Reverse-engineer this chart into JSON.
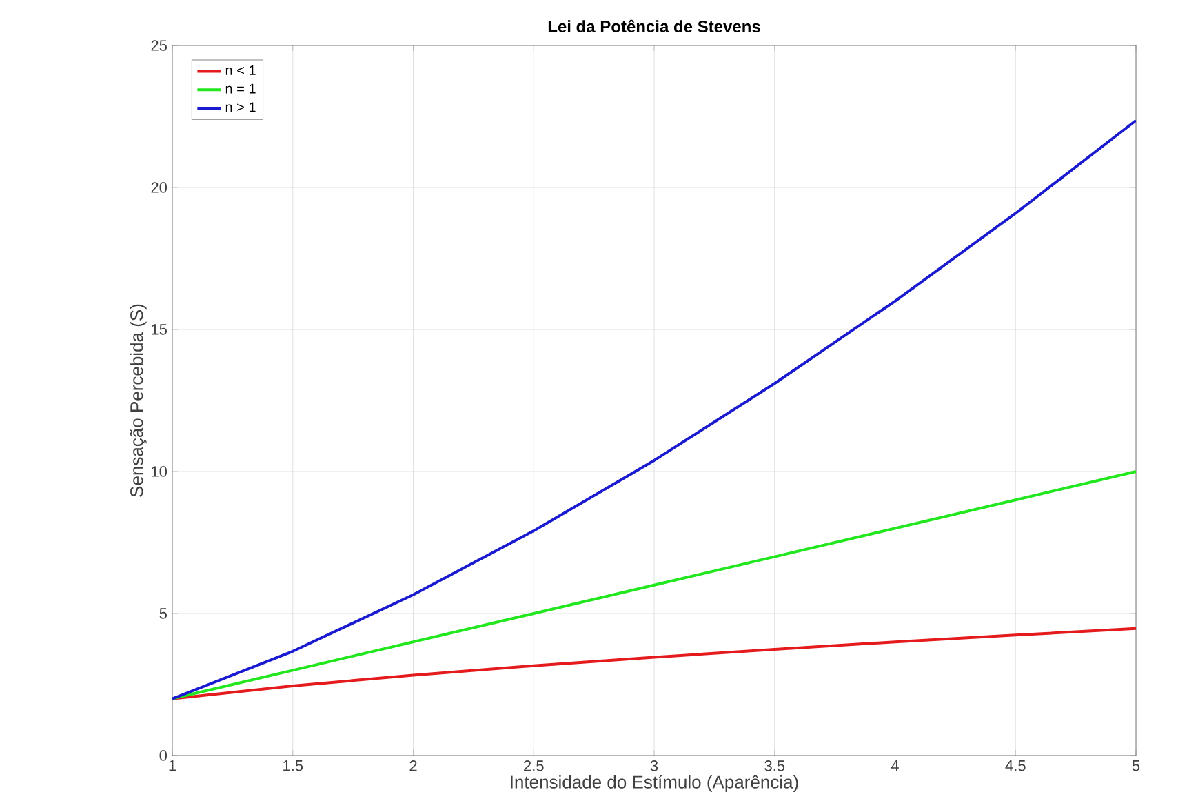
{
  "chart_data": {
    "type": "line",
    "title": "Lei da Potência de Stevens",
    "xlabel": "Intensidade do Estímulo (Aparência)",
    "ylabel": "Sensação Percebida (S)",
    "x": [
      1,
      1.5,
      2,
      2.5,
      3,
      3.5,
      4,
      4.5,
      5
    ],
    "series": [
      {
        "name": "n < 1",
        "color": "#e41a1c",
        "values": [
          2,
          2.45,
          2.83,
          3.16,
          3.46,
          3.74,
          4,
          4.24,
          4.47
        ]
      },
      {
        "name": "n = 1",
        "color": "#22e61e",
        "values": [
          2,
          3,
          4,
          5,
          6,
          7,
          8,
          9,
          10
        ]
      },
      {
        "name": "n > 1",
        "color": "#1a1ad0",
        "values": [
          2,
          3.67,
          5.66,
          7.91,
          10.39,
          13.1,
          16,
          19.09,
          22.36
        ]
      }
    ],
    "xlim": [
      1,
      5
    ],
    "ylim": [
      0,
      25
    ],
    "xticks": [
      1,
      1.5,
      2,
      2.5,
      3,
      3.5,
      4,
      4.5,
      5
    ],
    "yticks": [
      0,
      5,
      10,
      15,
      20,
      25
    ],
    "grid": true,
    "legend": "top left",
    "marker": "none",
    "line_style": "solid"
  }
}
